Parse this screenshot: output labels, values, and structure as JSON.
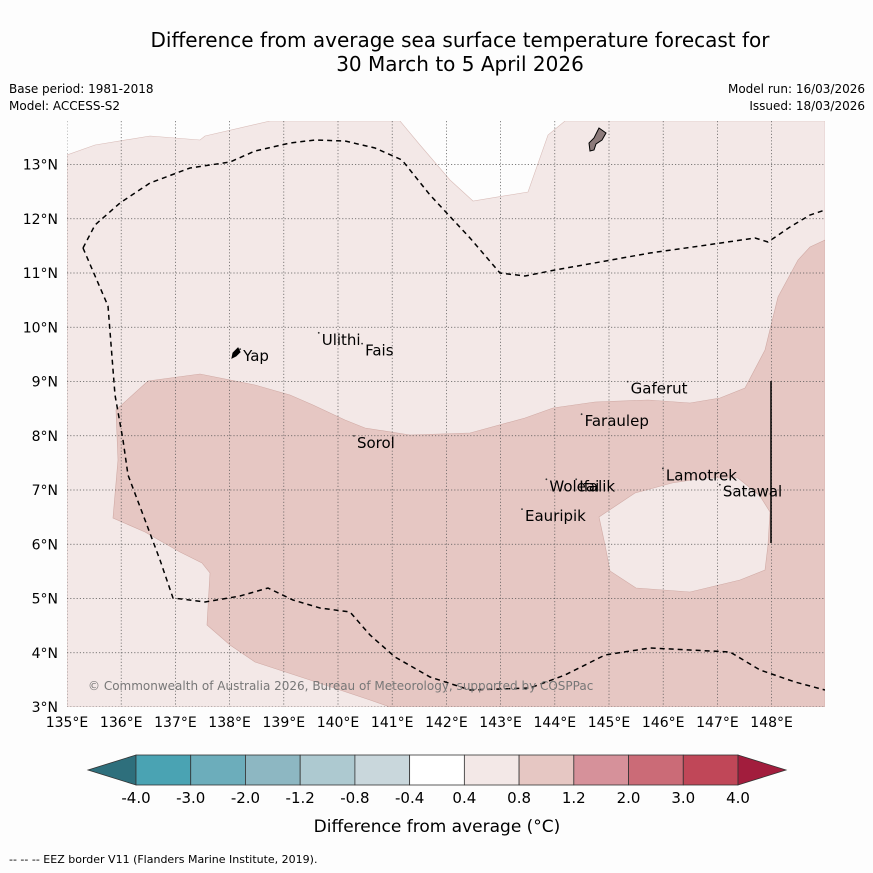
{
  "title": {
    "line1": "Difference from average sea surface temperature forecast for",
    "line2": "30 March to 5 April 2026"
  },
  "meta": {
    "base_period": "Base period: 1981-2018",
    "model": "Model: ACCESS-S2",
    "model_run": "Model run: 16/03/2026",
    "issued": "Issued: 18/03/2026"
  },
  "map": {
    "lon_ticks": [
      "135°E",
      "136°E",
      "137°E",
      "138°E",
      "139°E",
      "140°E",
      "141°E",
      "142°E",
      "143°E",
      "144°E",
      "145°E",
      "146°E",
      "147°E",
      "148°E"
    ],
    "lat_ticks": [
      "3°N",
      "4°N",
      "5°N",
      "6°N",
      "7°N",
      "8°N",
      "9°N",
      "10°N",
      "11°N",
      "12°N",
      "13°N"
    ],
    "places": [
      {
        "name": "Yap",
        "lon": 138.25,
        "lat": 9.45
      },
      {
        "name": "Ulithi",
        "lon": 139.7,
        "lat": 9.75
      },
      {
        "name": "Fais",
        "lon": 140.5,
        "lat": 9.55
      },
      {
        "name": "Gaferut",
        "lon": 145.4,
        "lat": 8.85
      },
      {
        "name": "Faraulep",
        "lon": 144.55,
        "lat": 8.25
      },
      {
        "name": "Sorol",
        "lon": 140.35,
        "lat": 7.85
      },
      {
        "name": "Woleai",
        "lon": 143.9,
        "lat": 7.05
      },
      {
        "name": "Ifalik",
        "lon": 144.45,
        "lat": 7.05
      },
      {
        "name": "Lamotrek",
        "lon": 146.05,
        "lat": 7.25
      },
      {
        "name": "Satawal",
        "lon": 147.1,
        "lat": 6.95
      },
      {
        "name": "Eauripik",
        "lon": 143.45,
        "lat": 6.5
      }
    ],
    "copyright": "© Commonwealth of Australia 2026, Bureau of Meteorology, supported by COSPPac"
  },
  "colorbar": {
    "tick_labels": [
      "-4.0",
      "-3.0",
      "-2.0",
      "-1.2",
      "-0.8",
      "-0.4",
      "0.4",
      "0.8",
      "1.2",
      "2.0",
      "3.0",
      "4.0"
    ],
    "colors": [
      "#2e6f7c",
      "#4aa3b3",
      "#6cadbb",
      "#8db7c2",
      "#adc9d0",
      "#c9d7dc",
      "#ffffff",
      "#f3e8e7",
      "#e6c7c3",
      "#d6919a",
      "#cb6b77",
      "#c04758",
      "#a21d3d"
    ],
    "label": "Difference from average (°C)"
  },
  "colors": {
    "light_anomaly": "#f3e8e7",
    "mid_anomaly": "#e6c7c3",
    "land": "#8c7a7a"
  },
  "footnote": "--  --  -- EEZ border V11 (Flanders Marine Institute, 2019)."
}
